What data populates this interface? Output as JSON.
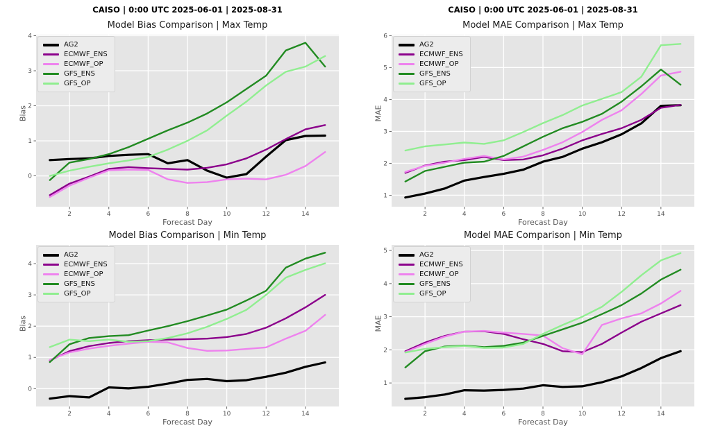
{
  "headers": [
    "CAISO | 0:00 UTC 2025-06-01 | 2025-08-31",
    "CAISO | 0:00 UTC 2025-06-01 | 2025-08-31"
  ],
  "style": {
    "plot_bg": "#E5E5E5",
    "grid_color": "#FFFFFF",
    "tick_color": "#555555",
    "text_color": "#555555",
    "title_color": "#1a1a1a"
  },
  "chart_data": [
    {
      "type": "line",
      "title": "Model Bias Comparison | Max Temp",
      "xlabel": "Forecast Day",
      "ylabel": "Bias",
      "x": [
        1,
        2,
        3,
        4,
        5,
        6,
        7,
        8,
        9,
        10,
        11,
        12,
        13,
        14,
        15
      ],
      "xticks": [
        2,
        4,
        6,
        8,
        10,
        12,
        14
      ],
      "yticks": [
        0,
        1,
        2,
        3,
        4
      ],
      "xlim": [
        0.3,
        15.7
      ],
      "ylim": [
        -0.88,
        4.03
      ],
      "grid": true,
      "legend_position": "upper-left",
      "series": [
        {
          "name": "AG2",
          "color": "#000000",
          "width": 3.2,
          "values": [
            0.45,
            0.48,
            0.5,
            0.57,
            0.6,
            0.62,
            0.36,
            0.45,
            0.15,
            -0.05,
            0.05,
            0.55,
            1.02,
            1.14,
            1.15
          ]
        },
        {
          "name": "ECMWF_ENS",
          "color": "#8B008B",
          "width": 2.4,
          "values": [
            -0.55,
            -0.22,
            -0.02,
            0.2,
            0.25,
            0.22,
            0.2,
            0.18,
            0.23,
            0.33,
            0.5,
            0.75,
            1.05,
            1.33,
            1.45
          ]
        },
        {
          "name": "ECMWF_OP",
          "color": "#EE82EE",
          "width": 2.4,
          "values": [
            -0.6,
            -0.28,
            -0.05,
            0.16,
            0.18,
            0.17,
            -0.1,
            -0.2,
            -0.18,
            -0.1,
            -0.08,
            -0.1,
            0.03,
            0.28,
            0.68
          ]
        },
        {
          "name": "GFS_ENS",
          "color": "#228B22",
          "width": 2.4,
          "values": [
            -0.12,
            0.38,
            0.48,
            0.62,
            0.82,
            1.06,
            1.3,
            1.52,
            1.78,
            2.1,
            2.48,
            2.86,
            3.58,
            3.8,
            3.12
          ]
        },
        {
          "name": "GFS_OP",
          "color": "#90EE90",
          "width": 2.4,
          "values": [
            0.0,
            0.15,
            0.26,
            0.36,
            0.44,
            0.54,
            0.75,
            1.0,
            1.3,
            1.72,
            2.12,
            2.58,
            2.97,
            3.12,
            3.42
          ]
        }
      ]
    },
    {
      "type": "line",
      "title": "Model MAE Comparison | Max Temp",
      "xlabel": "Forecast Day",
      "ylabel": "MAE",
      "x": [
        1,
        2,
        3,
        4,
        5,
        6,
        7,
        8,
        9,
        10,
        11,
        12,
        13,
        14,
        15
      ],
      "xticks": [
        2,
        4,
        6,
        8,
        10,
        12,
        14
      ],
      "yticks": [
        1,
        2,
        3,
        4,
        5,
        6
      ],
      "xlim": [
        0.3,
        15.7
      ],
      "ylim": [
        0.64,
        6.03
      ],
      "grid": true,
      "legend_position": "upper-left",
      "series": [
        {
          "name": "AG2",
          "color": "#000000",
          "width": 3.2,
          "values": [
            0.93,
            1.05,
            1.21,
            1.46,
            1.57,
            1.67,
            1.8,
            2.05,
            2.2,
            2.46,
            2.66,
            2.91,
            3.25,
            3.8,
            3.82
          ]
        },
        {
          "name": "ECMWF_ENS",
          "color": "#8B008B",
          "width": 2.4,
          "values": [
            1.7,
            1.93,
            2.05,
            2.1,
            2.2,
            2.1,
            2.12,
            2.25,
            2.46,
            2.72,
            2.92,
            3.1,
            3.36,
            3.74,
            3.83
          ]
        },
        {
          "name": "ECMWF_OP",
          "color": "#EE82EE",
          "width": 2.4,
          "values": [
            1.73,
            1.92,
            2.02,
            2.14,
            2.23,
            2.12,
            2.21,
            2.42,
            2.66,
            2.98,
            3.36,
            3.66,
            4.17,
            4.75,
            4.87
          ]
        },
        {
          "name": "GFS_ENS",
          "color": "#228B22",
          "width": 2.4,
          "values": [
            1.43,
            1.76,
            1.89,
            2.02,
            2.05,
            2.23,
            2.53,
            2.83,
            3.1,
            3.3,
            3.55,
            3.93,
            4.41,
            4.94,
            4.46
          ]
        },
        {
          "name": "GFS_OP",
          "color": "#90EE90",
          "width": 2.4,
          "values": [
            2.4,
            2.53,
            2.59,
            2.65,
            2.61,
            2.72,
            2.98,
            3.26,
            3.51,
            3.81,
            4.02,
            4.23,
            4.71,
            5.7,
            5.74
          ]
        }
      ]
    },
    {
      "type": "line",
      "title": "Model Bias Comparison | Min Temp",
      "xlabel": "Forecast Day",
      "ylabel": "Bias",
      "x": [
        1,
        2,
        3,
        4,
        5,
        6,
        7,
        8,
        9,
        10,
        11,
        12,
        13,
        14,
        15
      ],
      "xticks": [
        2,
        4,
        6,
        8,
        10,
        12,
        14
      ],
      "yticks": [
        0,
        1,
        2,
        3,
        4
      ],
      "xlim": [
        0.3,
        15.7
      ],
      "ylim": [
        -0.57,
        4.6
      ],
      "grid": true,
      "legend_position": "upper-left",
      "series": [
        {
          "name": "AG2",
          "color": "#000000",
          "width": 3.2,
          "values": [
            -0.32,
            -0.24,
            -0.28,
            0.04,
            0.01,
            0.06,
            0.16,
            0.28,
            0.31,
            0.24,
            0.27,
            0.38,
            0.51,
            0.7,
            0.84
          ]
        },
        {
          "name": "ECMWF_ENS",
          "color": "#8B008B",
          "width": 2.4,
          "values": [
            0.9,
            1.2,
            1.36,
            1.46,
            1.52,
            1.55,
            1.57,
            1.58,
            1.6,
            1.65,
            1.75,
            1.95,
            2.25,
            2.6,
            3.0
          ]
        },
        {
          "name": "ECMWF_OP",
          "color": "#EE82EE",
          "width": 2.4,
          "values": [
            0.92,
            1.16,
            1.28,
            1.37,
            1.44,
            1.5,
            1.48,
            1.3,
            1.21,
            1.22,
            1.27,
            1.32,
            1.6,
            1.85,
            2.36
          ]
        },
        {
          "name": "GFS_ENS",
          "color": "#228B22",
          "width": 2.4,
          "values": [
            0.85,
            1.42,
            1.62,
            1.68,
            1.71,
            1.86,
            2.0,
            2.16,
            2.34,
            2.53,
            2.82,
            3.13,
            3.87,
            4.16,
            4.35
          ]
        },
        {
          "name": "GFS_OP",
          "color": "#90EE90",
          "width": 2.4,
          "values": [
            1.33,
            1.57,
            1.52,
            1.57,
            1.5,
            1.52,
            1.62,
            1.77,
            1.98,
            2.23,
            2.52,
            3.0,
            3.55,
            3.8,
            4.01
          ]
        }
      ]
    },
    {
      "type": "line",
      "title": "Model MAE Comparison | Min Temp",
      "xlabel": "Forecast Day",
      "ylabel": "MAE",
      "x": [
        1,
        2,
        3,
        4,
        5,
        6,
        7,
        8,
        9,
        10,
        11,
        12,
        13,
        14,
        15
      ],
      "xticks": [
        2,
        4,
        6,
        8,
        10,
        12,
        14
      ],
      "yticks": [
        1,
        2,
        3,
        4,
        5
      ],
      "xlim": [
        0.3,
        15.7
      ],
      "ylim": [
        0.29,
        5.17
      ],
      "grid": true,
      "legend_position": "upper-left",
      "series": [
        {
          "name": "AG2",
          "color": "#000000",
          "width": 3.2,
          "values": [
            0.52,
            0.57,
            0.65,
            0.78,
            0.77,
            0.79,
            0.83,
            0.93,
            0.88,
            0.9,
            1.02,
            1.2,
            1.45,
            1.75,
            1.96
          ]
        },
        {
          "name": "ECMWF_ENS",
          "color": "#8B008B",
          "width": 2.4,
          "values": [
            1.96,
            2.22,
            2.42,
            2.55,
            2.56,
            2.48,
            2.32,
            2.18,
            1.96,
            1.93,
            2.18,
            2.52,
            2.85,
            3.1,
            3.35
          ]
        },
        {
          "name": "ECMWF_OP",
          "color": "#EE82EE",
          "width": 2.4,
          "values": [
            1.93,
            2.18,
            2.4,
            2.55,
            2.57,
            2.52,
            2.48,
            2.43,
            2.05,
            1.87,
            2.75,
            2.95,
            3.1,
            3.4,
            3.78
          ]
        },
        {
          "name": "GFS_ENS",
          "color": "#228B22",
          "width": 2.4,
          "values": [
            1.47,
            1.96,
            2.1,
            2.13,
            2.08,
            2.12,
            2.22,
            2.42,
            2.62,
            2.82,
            3.08,
            3.35,
            3.7,
            4.12,
            4.42
          ]
        },
        {
          "name": "GFS_OP",
          "color": "#90EE90",
          "width": 2.4,
          "values": [
            1.92,
            2.03,
            2.08,
            2.12,
            2.06,
            2.07,
            2.18,
            2.48,
            2.75,
            3.0,
            3.3,
            3.75,
            4.25,
            4.7,
            4.92
          ]
        }
      ]
    }
  ]
}
